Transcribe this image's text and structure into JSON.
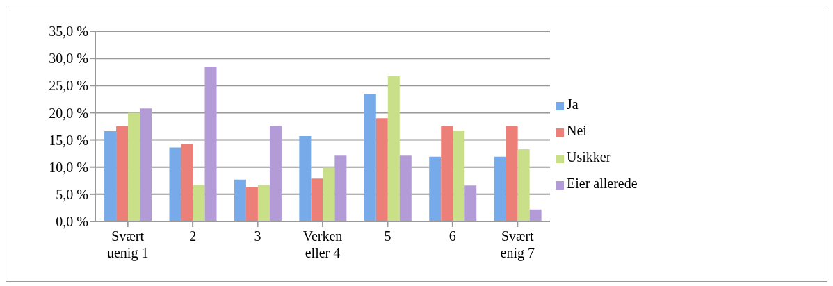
{
  "chart_data": {
    "type": "bar",
    "categories": [
      "Svært uenig 1",
      "2",
      "3",
      "Verken eller 4",
      "5",
      "6",
      "Svært enig 7"
    ],
    "series": [
      {
        "name": "Ja",
        "color": "#76aae8",
        "values": [
          16.6,
          13.6,
          7.7,
          15.7,
          23.5,
          11.9,
          11.9
        ]
      },
      {
        "name": "Nei",
        "color": "#ec8078",
        "values": [
          17.5,
          14.3,
          6.3,
          7.9,
          19.0,
          17.5,
          17.5
        ]
      },
      {
        "name": "Usikker",
        "color": "#c9e088",
        "values": [
          20.0,
          6.7,
          6.7,
          9.9,
          26.7,
          16.7,
          13.3
        ]
      },
      {
        "name": "Eier allerede",
        "color": "#b29bd6",
        "values": [
          20.8,
          28.5,
          17.6,
          12.1,
          12.1,
          6.6,
          2.2
        ]
      }
    ],
    "ylim": [
      0,
      35
    ],
    "yticks": [
      {
        "value": 0,
        "label": "0,0 %"
      },
      {
        "value": 5,
        "label": "5,0 %"
      },
      {
        "value": 10,
        "label": "10,0 %"
      },
      {
        "value": 15,
        "label": "15,0 %"
      },
      {
        "value": 20,
        "label": "20,0 %"
      },
      {
        "value": 25,
        "label": "25,0 %"
      },
      {
        "value": 30,
        "label": "30,0 %"
      },
      {
        "value": 35,
        "label": "35,0 %"
      }
    ],
    "grid": "y",
    "legend": "right"
  }
}
